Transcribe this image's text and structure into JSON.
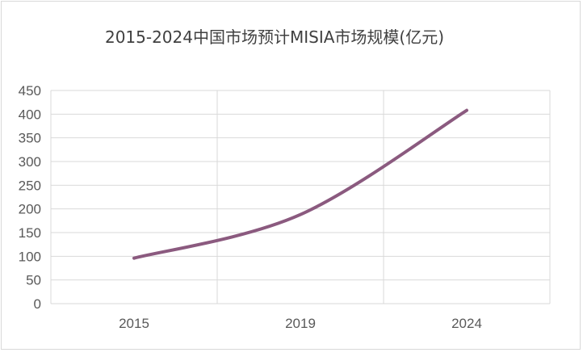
{
  "chart_data": {
    "type": "line",
    "title": "2015-2024中国市场预计MISIA市场规模(亿元)",
    "xlabel": "",
    "ylabel": "",
    "x": [
      2015,
      2019,
      2024
    ],
    "x_tick_labels": [
      "2015",
      "2019",
      "2024"
    ],
    "series": [
      {
        "values": [
          96,
          188,
          408
        ]
      }
    ],
    "ylim": [
      0,
      450
    ],
    "y_ticks": [
      0,
      50,
      100,
      150,
      200,
      250,
      300,
      350,
      400,
      450
    ],
    "grid": true,
    "smooth": true,
    "legend": "none",
    "colors": {
      "line": "#8b5a7f",
      "grid": "#d9d9d9",
      "axis_text": "#595959",
      "title": "#404040"
    }
  }
}
